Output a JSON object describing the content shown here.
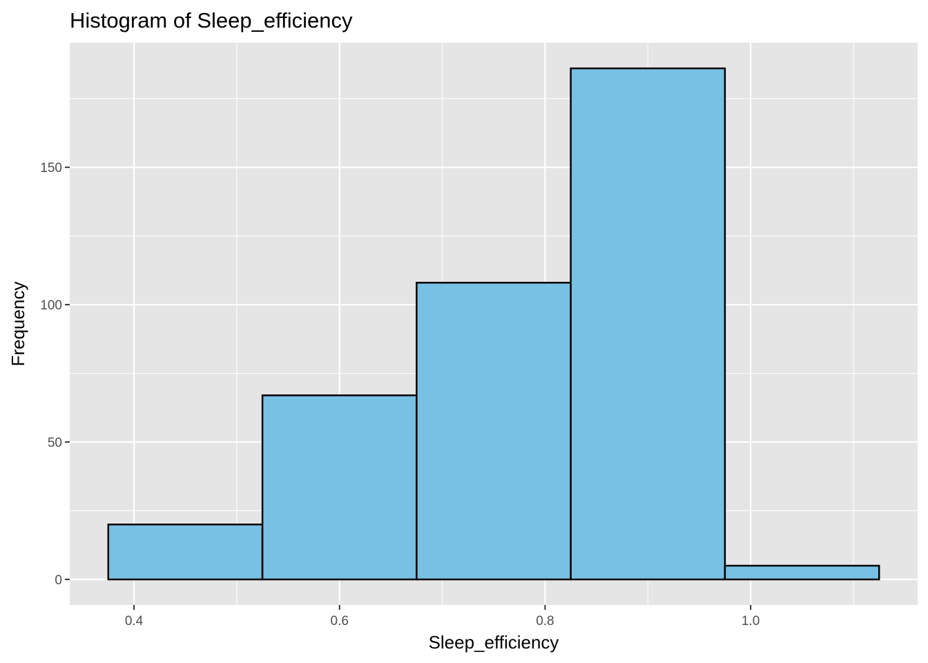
{
  "chart_data": {
    "type": "bar",
    "title": "Histogram of Sleep_efficiency",
    "xlabel": "Sleep_efficiency",
    "ylabel": "Frequency",
    "bins": [
      {
        "x_start": 0.375,
        "x_end": 0.525,
        "count": 20
      },
      {
        "x_start": 0.525,
        "x_end": 0.675,
        "count": 67
      },
      {
        "x_start": 0.675,
        "x_end": 0.825,
        "count": 108
      },
      {
        "x_start": 0.825,
        "x_end": 0.975,
        "count": 186
      },
      {
        "x_start": 0.975,
        "x_end": 1.125,
        "count": 5
      }
    ],
    "xlim": [
      0.3375,
      1.1625
    ],
    "ylim": [
      -9.3,
      195.3
    ],
    "x_ticks": [
      {
        "value": 0.4,
        "label": "0.4"
      },
      {
        "value": 0.6,
        "label": "0.6"
      },
      {
        "value": 0.8,
        "label": "0.8"
      },
      {
        "value": 1.0,
        "label": "1.0"
      }
    ],
    "y_ticks": [
      {
        "value": 0,
        "label": "0"
      },
      {
        "value": 50,
        "label": "50"
      },
      {
        "value": 100,
        "label": "100"
      },
      {
        "value": 150,
        "label": "150"
      }
    ],
    "x_minor_ticks": [
      0.5,
      0.7,
      0.9,
      1.1
    ],
    "y_minor_ticks": [
      25,
      75,
      125,
      175
    ],
    "grid": true,
    "colors": {
      "bar_fill": "#78c1e4",
      "bar_outline": "#000000",
      "panel_background": "#e5e5e5",
      "grid": "#ffffff"
    }
  }
}
